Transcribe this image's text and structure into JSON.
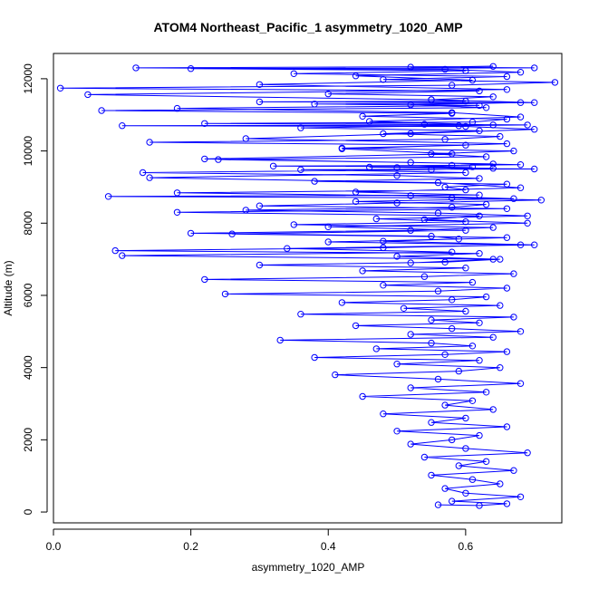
{
  "chart_data": {
    "type": "scatter",
    "title": "ATOM4 Northeast_Pacific_1 asymmetry_1020_AMP",
    "xlabel": "asymmetry_1020_AMP",
    "ylabel": "Altitude (m)",
    "xlim": [
      0.0,
      0.74
    ],
    "ylim": [
      -300,
      12700
    ],
    "xticks": [
      0.0,
      0.2,
      0.4,
      0.6
    ],
    "xtick_labels": [
      "0.0",
      "0.2",
      "0.4",
      "0.6"
    ],
    "yticks": [
      0,
      2000,
      4000,
      6000,
      8000,
      10000,
      12000
    ],
    "ytick_labels": [
      "0",
      "2000",
      "4000",
      "6000",
      "8000",
      "10000",
      "12000"
    ],
    "grid": false,
    "legend": "none",
    "connected": true,
    "color": "#0000ff",
    "series": [
      {
        "x": [
          0.56,
          0.62,
          0.66,
          0.58,
          0.68,
          0.6,
          0.57,
          0.65,
          0.61,
          0.55,
          0.67,
          0.59,
          0.63,
          0.54,
          0.69,
          0.6,
          0.52,
          0.58,
          0.62,
          0.5,
          0.66,
          0.55,
          0.6,
          0.48,
          0.64,
          0.57,
          0.61,
          0.45,
          0.63,
          0.52,
          0.68,
          0.56,
          0.41,
          0.59,
          0.65,
          0.5,
          0.62,
          0.38,
          0.57,
          0.66,
          0.47,
          0.61,
          0.55,
          0.33,
          0.64,
          0.52,
          0.68,
          0.58,
          0.44,
          0.62,
          0.55,
          0.67,
          0.36,
          0.6,
          0.51,
          0.65,
          0.42,
          0.58,
          0.63,
          0.25,
          0.56,
          0.66,
          0.48,
          0.61,
          0.22,
          0.54,
          0.67,
          0.45,
          0.6,
          0.3,
          0.57,
          0.65,
          0.5,
          0.62,
          0.09,
          0.48,
          0.68,
          0.4,
          0.59,
          0.55,
          0.2,
          0.52,
          0.64,
          0.35,
          0.6,
          0.47,
          0.69,
          0.56,
          0.28,
          0.58,
          0.63,
          0.44,
          0.67,
          0.52,
          0.18,
          0.6,
          0.57,
          0.66,
          0.38,
          0.62,
          0.5,
          0.13,
          0.55,
          0.64,
          0.46,
          0.61,
          0.32,
          0.58,
          0.68,
          0.52,
          0.24,
          0.63,
          0.55,
          0.67,
          0.42,
          0.6,
          0.14,
          0.57,
          0.65,
          0.48,
          0.62,
          0.36,
          0.59,
          0.69,
          0.54,
          0.22,
          0.61,
          0.66,
          0.45,
          0.58,
          0.07,
          0.63,
          0.52,
          0.68,
          0.3,
          0.6,
          0.55,
          0.64,
          0.4,
          0.62,
          0.01,
          0.58,
          0.73,
          0.48,
          0.66,
          0.35,
          0.6,
          0.2,
          0.7,
          0.52,
          0.64,
          0.12,
          0.57,
          0.68,
          0.44,
          0.61,
          0.3,
          0.66,
          0.05,
          0.55,
          0.7,
          0.38,
          0.62,
          0.18,
          0.58,
          0.68,
          0.46,
          0.64,
          0.1,
          0.6,
          0.7,
          0.52,
          0.28,
          0.66,
          0.42,
          0.58,
          0.22,
          0.64,
          0.5,
          0.7,
          0.36,
          0.6,
          0.14,
          0.56,
          0.68,
          0.44,
          0.62,
          0.08,
          0.58,
          0.71,
          0.5,
          0.3,
          0.66,
          0.18,
          0.62,
          0.54,
          0.69,
          0.4,
          0.6,
          0.26,
          0.66,
          0.48,
          0.7,
          0.34,
          0.58,
          0.1,
          0.64,
          0.52
        ],
        "y": [
          200,
          180,
          230,
          300,
          420,
          520,
          650,
          780,
          900,
          1020,
          1150,
          1280,
          1400,
          1520,
          1640,
          1760,
          1880,
          2000,
          2120,
          2240,
          2360,
          2480,
          2600,
          2720,
          2840,
          2960,
          3080,
          3200,
          3320,
          3440,
          3560,
          3680,
          3800,
          3900,
          4000,
          4100,
          4200,
          4280,
          4360,
          4440,
          4520,
          4600,
          4680,
          4760,
          4840,
          4920,
          5000,
          5080,
          5160,
          5240,
          5320,
          5400,
          5480,
          5560,
          5640,
          5720,
          5800,
          5880,
          5960,
          6040,
          6120,
          6200,
          6280,
          6360,
          6440,
          6520,
          6600,
          6680,
          6760,
          6840,
          6920,
          7000,
          7080,
          7160,
          7240,
          7320,
          7400,
          7480,
          7560,
          7640,
          7720,
          7800,
          7880,
          7960,
          8040,
          8120,
          8200,
          8280,
          8360,
          8440,
          8520,
          8600,
          8680,
          8760,
          8840,
          8920,
          9000,
          9080,
          9160,
          9240,
          9320,
          9400,
          9480,
          9520,
          9550,
          9560,
          9580,
          9600,
          9620,
          9680,
          9760,
          9840,
          9920,
          10000,
          10080,
          10160,
          10240,
          10320,
          10400,
          10480,
          10560,
          10640,
          10700,
          10720,
          10740,
          10760,
          10800,
          10880,
          10960,
          11040,
          11120,
          11200,
          11280,
          11340,
          11360,
          11380,
          11420,
          11500,
          11580,
          11660,
          11740,
          11820,
          11900,
          11980,
          12060,
          12140,
          12220,
          12280,
          12300,
          12320,
          12340,
          12300,
          12260,
          12180,
          12080,
          11960,
          11840,
          11700,
          11560,
          11420,
          11340,
          11300,
          11260,
          11180,
          11060,
          10940,
          10820,
          10720,
          10700,
          10680,
          10600,
          10480,
          10340,
          10200,
          10060,
          9920,
          9780,
          9640,
          9540,
          9500,
          9480,
          9400,
          9260,
          9120,
          8980,
          8860,
          8780,
          8740,
          8700,
          8640,
          8560,
          8480,
          8400,
          8300,
          8200,
          8100,
          8000,
          7900,
          7800,
          7700,
          7600,
          7500,
          7400,
          7300,
          7200,
          7100,
          7000,
          6900
        ]
      }
    ]
  }
}
